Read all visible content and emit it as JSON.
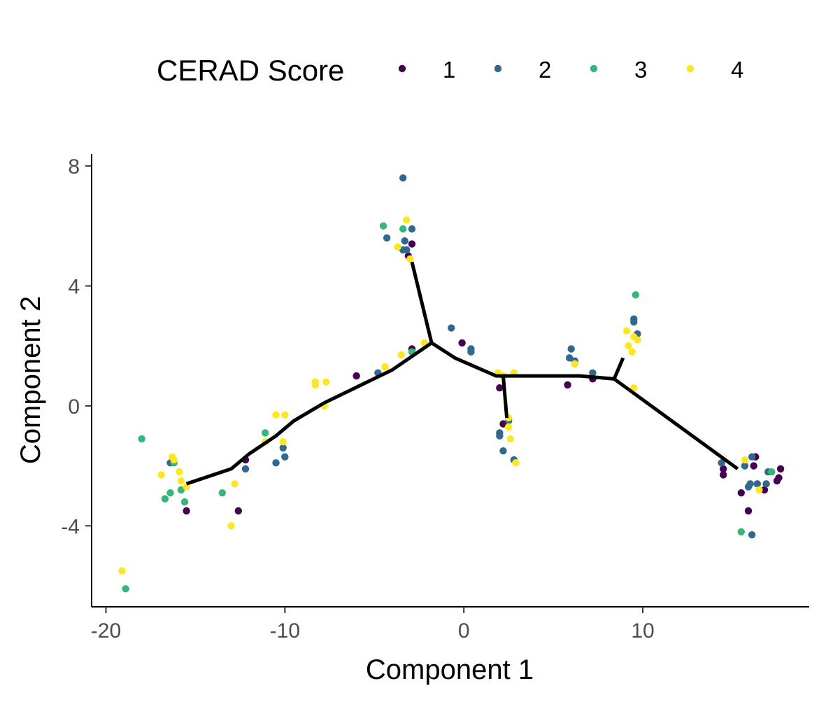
{
  "chart_data": {
    "type": "scatter",
    "xlabel": "Component 1",
    "ylabel": "Component 2",
    "xlim": [
      -20.8,
      19.3
    ],
    "ylim": [
      -6.7,
      8.4
    ],
    "x_ticks": [
      -20,
      -10,
      0,
      10
    ],
    "y_ticks": [
      -4,
      0,
      4,
      8
    ],
    "x_tick_labels": [
      "-20",
      "-10",
      "0",
      "10"
    ],
    "y_tick_labels": [
      "-4",
      "0",
      "4",
      "8"
    ],
    "grid": false,
    "legend": {
      "title": "CERAD Score",
      "position": "top",
      "entries": [
        "1",
        "2",
        "3",
        "4"
      ]
    },
    "colors": {
      "1": "#440154",
      "2": "#31688e",
      "3": "#35b779",
      "4": "#fde725"
    },
    "trajectory": [
      [
        [
          -15.5,
          -2.6
        ],
        [
          -13.0,
          -2.1
        ],
        [
          -12.0,
          -1.6
        ],
        [
          -10.5,
          -1.0
        ],
        [
          -9.5,
          -0.5
        ],
        [
          -7.8,
          0.1
        ],
        [
          -4.0,
          1.2
        ],
        [
          -1.8,
          2.1
        ],
        [
          -0.5,
          1.6
        ],
        [
          1.8,
          1.0
        ],
        [
          4.0,
          1.0
        ],
        [
          6.5,
          1.0
        ],
        [
          8.4,
          0.9
        ],
        [
          15.3,
          -2.1
        ]
      ],
      [
        [
          -1.8,
          2.1
        ],
        [
          -2.9,
          4.8
        ]
      ],
      [
        [
          2.2,
          1.0
        ],
        [
          2.4,
          -0.4
        ]
      ],
      [
        [
          8.4,
          0.9
        ],
        [
          8.9,
          1.6
        ]
      ]
    ],
    "series": [
      {
        "name": "1",
        "points": [
          [
            -15.5,
            -3.5
          ],
          [
            -12.2,
            -1.8
          ],
          [
            -12.6,
            -3.5
          ],
          [
            -6.0,
            1.0
          ],
          [
            -3.1,
            5.0
          ],
          [
            -2.9,
            5.4
          ],
          [
            -2.9,
            1.9
          ],
          [
            -0.1,
            2.1
          ],
          [
            2.0,
            0.6
          ],
          [
            2.2,
            -0.6
          ],
          [
            5.8,
            0.7
          ],
          [
            7.2,
            0.9
          ],
          [
            14.5,
            -2.1
          ],
          [
            14.5,
            -2.3
          ],
          [
            15.5,
            -2.9
          ],
          [
            15.9,
            -3.5
          ],
          [
            16.2,
            -2.0
          ],
          [
            16.3,
            -1.7
          ],
          [
            16.8,
            -2.8
          ],
          [
            17.5,
            -2.5
          ],
          [
            17.6,
            -2.4
          ],
          [
            17.7,
            -2.1
          ]
        ]
      },
      {
        "name": "2",
        "points": [
          [
            -16.4,
            -1.9
          ],
          [
            -12.2,
            -2.1
          ],
          [
            -10.5,
            -1.9
          ],
          [
            -10.1,
            -1.4
          ],
          [
            -10.0,
            -1.7
          ],
          [
            -4.8,
            1.1
          ],
          [
            -4.3,
            5.6
          ],
          [
            -3.4,
            7.6
          ],
          [
            -3.4,
            5.2
          ],
          [
            -3.3,
            5.5
          ],
          [
            -3.2,
            5.2
          ],
          [
            -2.9,
            5.9
          ],
          [
            -0.7,
            2.6
          ],
          [
            0.4,
            1.9
          ],
          [
            0.4,
            1.8
          ],
          [
            2.0,
            -0.9
          ],
          [
            2.0,
            -1.0
          ],
          [
            2.2,
            -1.5
          ],
          [
            2.5,
            -0.5
          ],
          [
            2.8,
            -1.8
          ],
          [
            5.9,
            1.6
          ],
          [
            6.0,
            1.9
          ],
          [
            6.2,
            1.5
          ],
          [
            7.2,
            1.1
          ],
          [
            9.5,
            2.9
          ],
          [
            9.5,
            2.8
          ],
          [
            9.7,
            2.4
          ],
          [
            14.4,
            -1.9
          ],
          [
            15.7,
            -2.0
          ],
          [
            15.9,
            -2.7
          ],
          [
            16.0,
            -2.6
          ],
          [
            16.1,
            -1.7
          ],
          [
            16.1,
            -4.3
          ],
          [
            16.4,
            -2.6
          ],
          [
            16.9,
            -2.6
          ],
          [
            17.0,
            -2.2
          ]
        ]
      },
      {
        "name": "3",
        "points": [
          [
            -18.9,
            -6.1
          ],
          [
            -18.0,
            -1.1
          ],
          [
            -16.7,
            -3.1
          ],
          [
            -16.4,
            -2.9
          ],
          [
            -16.2,
            -1.9
          ],
          [
            -15.8,
            -2.8
          ],
          [
            -15.6,
            -3.2
          ],
          [
            -13.5,
            -2.9
          ],
          [
            -11.1,
            -0.9
          ],
          [
            -4.5,
            6.0
          ],
          [
            -3.4,
            5.9
          ],
          [
            -2.9,
            1.8
          ],
          [
            9.6,
            3.7
          ],
          [
            15.5,
            -4.2
          ],
          [
            17.2,
            -2.2
          ]
        ]
      },
      {
        "name": "4",
        "points": [
          [
            -19.1,
            -5.5
          ],
          [
            -16.9,
            -2.3
          ],
          [
            -16.3,
            -1.7
          ],
          [
            -16.2,
            -1.8
          ],
          [
            -15.9,
            -2.2
          ],
          [
            -15.8,
            -2.5
          ],
          [
            -15.5,
            -2.7
          ],
          [
            -12.8,
            -2.6
          ],
          [
            -13.0,
            -4.0
          ],
          [
            -11.1,
            -1.2
          ],
          [
            -10.5,
            -0.3
          ],
          [
            -10.1,
            -1.2
          ],
          [
            -10.0,
            -0.3
          ],
          [
            -8.3,
            0.8
          ],
          [
            -8.3,
            0.7
          ],
          [
            -7.8,
            0.0
          ],
          [
            -7.7,
            0.8
          ],
          [
            -4.4,
            1.3
          ],
          [
            -3.7,
            5.3
          ],
          [
            -3.5,
            1.7
          ],
          [
            -3.2,
            6.2
          ],
          [
            -3.0,
            4.9
          ],
          [
            -2.2,
            2.1
          ],
          [
            1.9,
            1.1
          ],
          [
            2.2,
            1.0
          ],
          [
            2.5,
            -0.4
          ],
          [
            2.5,
            -0.7
          ],
          [
            2.6,
            -1.1
          ],
          [
            2.8,
            1.1
          ],
          [
            2.9,
            -1.9
          ],
          [
            6.2,
            1.4
          ],
          [
            9.1,
            2.5
          ],
          [
            9.2,
            2.0
          ],
          [
            9.4,
            1.8
          ],
          [
            9.5,
            0.6
          ],
          [
            9.5,
            2.3
          ],
          [
            9.7,
            2.2
          ],
          [
            15.7,
            -1.8
          ],
          [
            16.5,
            -2.8
          ]
        ]
      }
    ]
  }
}
